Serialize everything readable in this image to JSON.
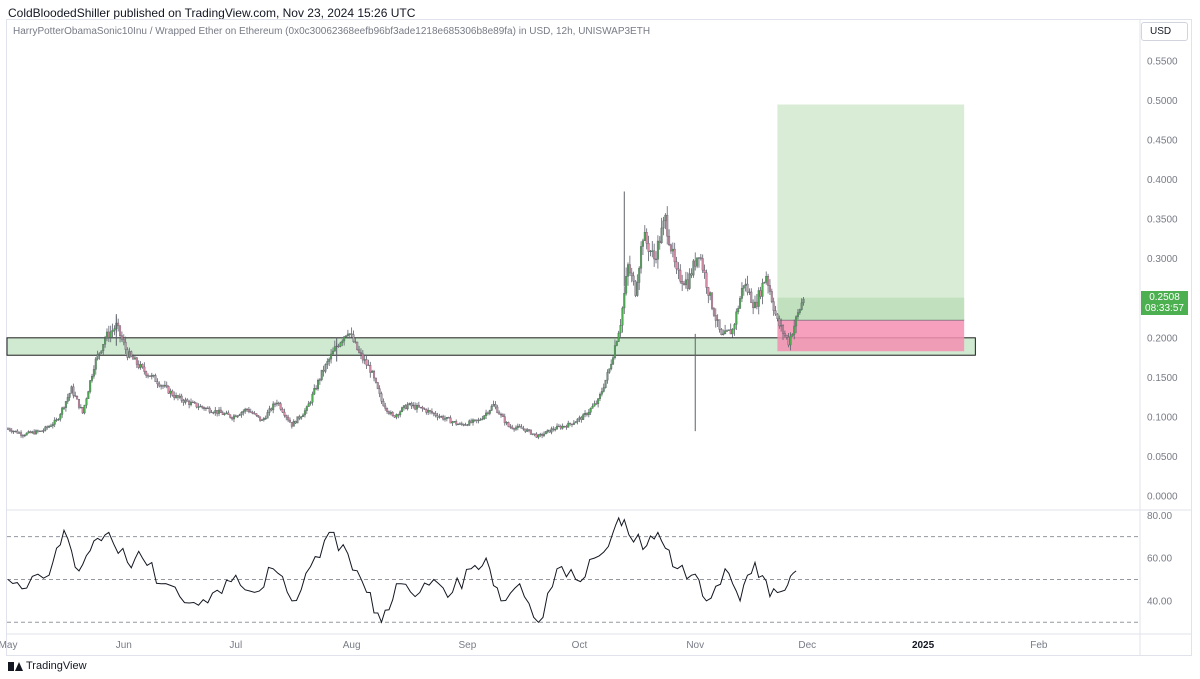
{
  "header": {
    "publisher": "ColdBloodedShiller published on TradingView.com, Nov 23, 2024 15:26 UTC",
    "symbol": "HarryPotterObamaSonic10Inu / Wrapped Ether on Ethereum (0x0c30062368eefb96bf3ade1218e685306b8e89fa) in USD, 12h, UNISWAP3ETH",
    "currency": "USD"
  },
  "price_badge": {
    "price": "0.2508",
    "countdown": "08:33:57",
    "color": "#4caf50"
  },
  "footer": {
    "brand": "TradingView"
  },
  "colors": {
    "up": "#4caf50",
    "down": "#d98ca6",
    "wick": "#5d606b",
    "zone": "#c8e6c9",
    "target": "#d5ead0",
    "stop": "#f48fb1"
  },
  "chart_data": [
    {
      "type": "candlestick",
      "title": "",
      "xlabel": "",
      "ylabel": "",
      "ylim": [
        0,
        0.56
      ],
      "xlim": [
        "2024-05-01",
        "2025-02-28"
      ],
      "y_ticks": [
        "0.5500",
        "0.5000",
        "0.4500",
        "0.4000",
        "0.3500",
        "0.3000",
        "0.2500",
        "0.2000",
        "0.1500",
        "0.1000",
        "0.0500",
        "0.0000"
      ],
      "x_ticks": [
        {
          "date": "2024-05-01",
          "label": "May"
        },
        {
          "date": "2024-06-01",
          "label": "Jun"
        },
        {
          "date": "2024-07-01",
          "label": "Jul"
        },
        {
          "date": "2024-08-01",
          "label": "Aug"
        },
        {
          "date": "2024-09-01",
          "label": "Sep"
        },
        {
          "date": "2024-10-01",
          "label": "Oct"
        },
        {
          "date": "2024-11-01",
          "label": "Nov"
        },
        {
          "date": "2024-12-01",
          "label": "Dec"
        },
        {
          "date": "2025-01-01",
          "label": "2025"
        },
        {
          "date": "2025-02-01",
          "label": "Feb"
        }
      ],
      "close_path": [
        [
          "2024-05-01",
          0.085
        ],
        [
          "2024-05-05",
          0.078
        ],
        [
          "2024-05-10",
          0.082
        ],
        [
          "2024-05-14",
          0.095
        ],
        [
          "2024-05-18",
          0.135
        ],
        [
          "2024-05-21",
          0.105
        ],
        [
          "2024-05-24",
          0.165
        ],
        [
          "2024-05-27",
          0.2
        ],
        [
          "2024-05-30",
          0.215
        ],
        [
          "2024-06-02",
          0.18
        ],
        [
          "2024-06-06",
          0.16
        ],
        [
          "2024-06-10",
          0.145
        ],
        [
          "2024-06-15",
          0.125
        ],
        [
          "2024-06-20",
          0.115
        ],
        [
          "2024-06-25",
          0.108
        ],
        [
          "2024-06-30",
          0.1
        ],
        [
          "2024-07-04",
          0.11
        ],
        [
          "2024-07-08",
          0.095
        ],
        [
          "2024-07-12",
          0.12
        ],
        [
          "2024-07-16",
          0.09
        ],
        [
          "2024-07-20",
          0.11
        ],
        [
          "2024-07-24",
          0.155
        ],
        [
          "2024-07-28",
          0.19
        ],
        [
          "2024-07-31",
          0.21
        ],
        [
          "2024-08-03",
          0.18
        ],
        [
          "2024-08-06",
          0.16
        ],
        [
          "2024-08-09",
          0.12
        ],
        [
          "2024-08-12",
          0.1
        ],
        [
          "2024-08-16",
          0.115
        ],
        [
          "2024-08-20",
          0.11
        ],
        [
          "2024-08-25",
          0.1
        ],
        [
          "2024-08-30",
          0.09
        ],
        [
          "2024-09-04",
          0.095
        ],
        [
          "2024-09-08",
          0.115
        ],
        [
          "2024-09-12",
          0.088
        ],
        [
          "2024-09-16",
          0.085
        ],
        [
          "2024-09-20",
          0.075
        ],
        [
          "2024-09-24",
          0.085
        ],
        [
          "2024-09-28",
          0.09
        ],
        [
          "2024-10-02",
          0.1
        ],
        [
          "2024-10-06",
          0.12
        ],
        [
          "2024-10-09",
          0.16
        ],
        [
          "2024-10-12",
          0.22
        ],
        [
          "2024-10-14",
          0.29
        ],
        [
          "2024-10-16",
          0.26
        ],
        [
          "2024-10-18",
          0.33
        ],
        [
          "2024-10-21",
          0.3
        ],
        [
          "2024-10-24",
          0.35
        ],
        [
          "2024-10-27",
          0.28
        ],
        [
          "2024-10-30",
          0.27
        ],
        [
          "2024-11-02",
          0.31
        ],
        [
          "2024-11-05",
          0.25
        ],
        [
          "2024-11-08",
          0.2
        ],
        [
          "2024-11-11",
          0.21
        ],
        [
          "2024-11-14",
          0.27
        ],
        [
          "2024-11-17",
          0.24
        ],
        [
          "2024-11-20",
          0.28
        ],
        [
          "2024-11-23",
          0.22
        ],
        [
          "2024-11-26",
          0.195
        ],
        [
          "2024-11-30",
          0.2508
        ]
      ],
      "wick_spikes": [
        [
          "2024-11-01",
          0.205,
          0.082
        ],
        [
          "2024-10-13",
          0.265,
          0.385
        ],
        [
          "2024-05-30",
          0.19,
          0.23
        ],
        [
          "2024-07-28",
          0.17,
          0.2
        ]
      ],
      "annotations": {
        "support_zone": {
          "x_start": "2024-05-01",
          "x_end": "2025-01-15",
          "y_low": 0.178,
          "y_high": 0.2
        },
        "long_position": {
          "x_start": "2024-11-23",
          "x_end": "2025-01-12",
          "entry": 0.2225,
          "target": 0.495,
          "stop": 0.183
        },
        "last_price": 0.2508
      }
    },
    {
      "type": "line",
      "title": "",
      "ylim": [
        25,
        82
      ],
      "y_ticks": [
        "80.00",
        "60.00",
        "40.00"
      ],
      "levels": [
        70,
        50,
        30
      ],
      "series": [
        {
          "x": "2024-05-01",
          "y": 50
        },
        {
          "x": "2024-05-06",
          "y": 46
        },
        {
          "x": "2024-05-12",
          "y": 52
        },
        {
          "x": "2024-05-16",
          "y": 73
        },
        {
          "x": "2024-05-20",
          "y": 54
        },
        {
          "x": "2024-05-24",
          "y": 68
        },
        {
          "x": "2024-05-28",
          "y": 72
        },
        {
          "x": "2024-06-02",
          "y": 58
        },
        {
          "x": "2024-06-06",
          "y": 60
        },
        {
          "x": "2024-06-11",
          "y": 48
        },
        {
          "x": "2024-06-16",
          "y": 42
        },
        {
          "x": "2024-06-21",
          "y": 38
        },
        {
          "x": "2024-06-26",
          "y": 45
        },
        {
          "x": "2024-07-01",
          "y": 52
        },
        {
          "x": "2024-07-06",
          "y": 44
        },
        {
          "x": "2024-07-11",
          "y": 55
        },
        {
          "x": "2024-07-16",
          "y": 40
        },
        {
          "x": "2024-07-21",
          "y": 56
        },
        {
          "x": "2024-07-26",
          "y": 72
        },
        {
          "x": "2024-07-31",
          "y": 62
        },
        {
          "x": "2024-08-05",
          "y": 44
        },
        {
          "x": "2024-08-09",
          "y": 30
        },
        {
          "x": "2024-08-13",
          "y": 48
        },
        {
          "x": "2024-08-18",
          "y": 42
        },
        {
          "x": "2024-08-23",
          "y": 50
        },
        {
          "x": "2024-08-28",
          "y": 44
        },
        {
          "x": "2024-09-02",
          "y": 55
        },
        {
          "x": "2024-09-06",
          "y": 60
        },
        {
          "x": "2024-09-10",
          "y": 40
        },
        {
          "x": "2024-09-15",
          "y": 48
        },
        {
          "x": "2024-09-20",
          "y": 30
        },
        {
          "x": "2024-09-25",
          "y": 55
        },
        {
          "x": "2024-09-30",
          "y": 50
        },
        {
          "x": "2024-10-05",
          "y": 60
        },
        {
          "x": "2024-10-10",
          "y": 72
        },
        {
          "x": "2024-10-13",
          "y": 78
        },
        {
          "x": "2024-10-18",
          "y": 64
        },
        {
          "x": "2024-10-22",
          "y": 72
        },
        {
          "x": "2024-10-26",
          "y": 56
        },
        {
          "x": "2024-10-31",
          "y": 52
        },
        {
          "x": "2024-11-04",
          "y": 40
        },
        {
          "x": "2024-11-09",
          "y": 55
        },
        {
          "x": "2024-11-13",
          "y": 40
        },
        {
          "x": "2024-11-17",
          "y": 58
        },
        {
          "x": "2024-11-21",
          "y": 42
        },
        {
          "x": "2024-11-25",
          "y": 45
        },
        {
          "x": "2024-11-28",
          "y": 54
        }
      ]
    }
  ]
}
